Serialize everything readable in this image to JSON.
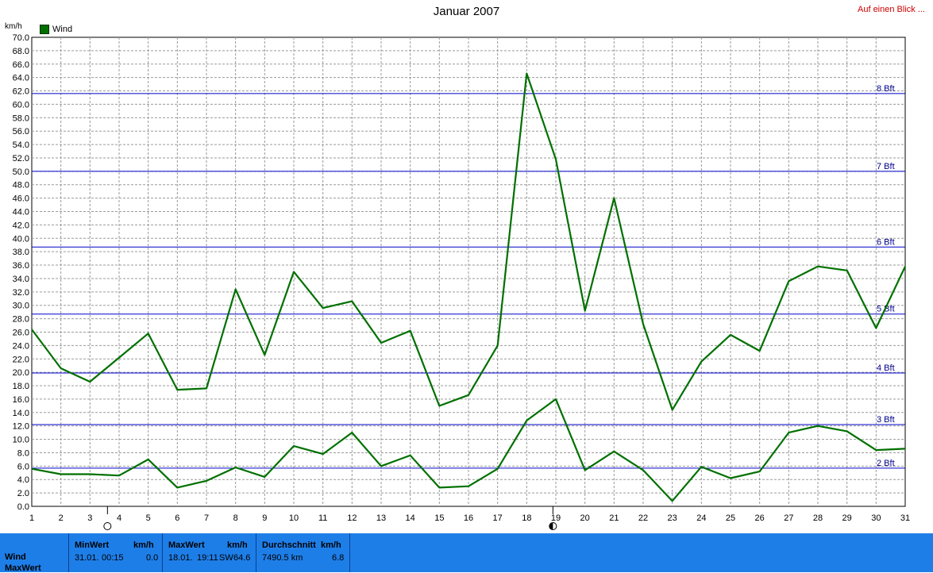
{
  "header": {
    "title": "Januar 2007",
    "glance_link": "Auf einen Blick ...",
    "unit": "km/h",
    "legend_label": "Wind"
  },
  "colors": {
    "series": "#007000",
    "grid": "#9a9a9a",
    "bft_line": "#0000cc",
    "panel": "#1e7ee8"
  },
  "chart_data": {
    "type": "line",
    "title": "Januar 2007",
    "ylabel": "km/h",
    "ylim": [
      0,
      70
    ],
    "ytick_step": 2,
    "xlim": [
      1,
      31
    ],
    "x": [
      1,
      2,
      3,
      4,
      5,
      6,
      7,
      8,
      9,
      10,
      11,
      12,
      13,
      14,
      15,
      16,
      17,
      18,
      19,
      20,
      21,
      22,
      23,
      24,
      25,
      26,
      27,
      28,
      29,
      30,
      31
    ],
    "grid": true,
    "legend": "top-left",
    "series": [
      {
        "name": "Wind",
        "role": "max",
        "values": [
          26.4,
          20.6,
          18.6,
          22.2,
          25.8,
          17.4,
          17.6,
          32.4,
          22.6,
          35.0,
          29.6,
          30.6,
          24.4,
          26.2,
          15.0,
          16.6,
          24.0,
          64.6,
          51.8,
          29.2,
          46.0,
          27.2,
          14.4,
          21.6,
          25.6,
          23.2,
          33.6,
          35.8,
          35.2,
          26.6,
          35.8
        ]
      },
      {
        "name": "",
        "role": "average",
        "values": [
          5.6,
          4.8,
          4.8,
          4.6,
          7.0,
          2.8,
          3.8,
          5.8,
          4.4,
          9.0,
          7.8,
          11.0,
          6.0,
          7.6,
          2.8,
          3.0,
          5.6,
          12.8,
          16.0,
          5.4,
          8.2,
          5.4,
          0.8,
          5.9,
          4.2,
          5.2,
          11.0,
          12.0,
          11.2,
          8.4,
          8.6
        ]
      }
    ],
    "beaufort_lines": [
      {
        "label": "2 Bft",
        "value": 5.7
      },
      {
        "label": "3 Bft",
        "value": 12.2
      },
      {
        "label": "4 Bft",
        "value": 19.9
      },
      {
        "label": "5 Bft",
        "value": 28.7
      },
      {
        "label": "6 Bft",
        "value": 38.7
      },
      {
        "label": "7 Bft",
        "value": 50.0
      },
      {
        "label": "8 Bft",
        "value": 61.6
      }
    ],
    "moon_phases": [
      {
        "day": 3.6,
        "phase": "full-moon-icon"
      },
      {
        "day": 18.9,
        "phase": "new-moon-icon"
      }
    ]
  },
  "stats_panel": {
    "row_label": "Wind",
    "row_label2": "MaxWert",
    "min": {
      "header": "MinWert",
      "unit": "km/h",
      "date": "31.01.",
      "time": "00:15",
      "value": "0.0"
    },
    "max": {
      "header": "MaxWert",
      "unit": "km/h",
      "date": "18.01.",
      "time": "19:11",
      "dir": "SW",
      "value": "64.6"
    },
    "avg": {
      "header": "Durchschnitt",
      "unit": "km/h",
      "distance": "7490.5 km",
      "value": "6.8"
    }
  }
}
